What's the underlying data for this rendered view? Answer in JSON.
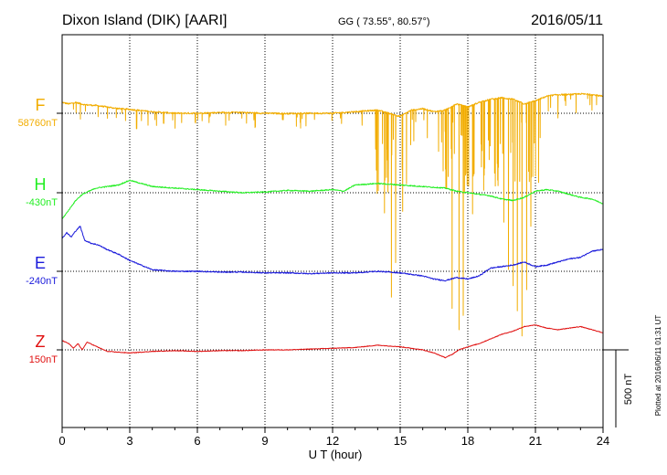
{
  "header": {
    "station": "Dixon Island (DIK)  [AARI]",
    "coords": "GG ( 73.55°,  80.57°)",
    "date": "2016/05/11"
  },
  "footer": {
    "plotted": "Plotted at 2016/06/11 01:31  UT"
  },
  "chart_data": {
    "type": "line",
    "xlabel": "U T (hour)",
    "xlim": [
      0,
      24
    ],
    "xticks": [
      0,
      3,
      6,
      9,
      12,
      15,
      18,
      21,
      24
    ],
    "grid": true,
    "scale_bar": {
      "label": "500 nT",
      "value": 500
    },
    "series": [
      {
        "name": "F",
        "baseline_label": "58760nT",
        "baseline_nT": 58760,
        "color": "#f2ad00",
        "x": [
          0,
          0.3,
          0.6,
          1.0,
          1.5,
          2.0,
          2.5,
          3.0,
          4.0,
          5.0,
          6.0,
          7.0,
          8.0,
          9.0,
          10.0,
          11.0,
          12.0,
          13.0,
          14.0,
          14.5,
          15.0,
          15.5,
          16.0,
          16.5,
          17.0,
          17.5,
          18.0,
          18.5,
          19.0,
          19.5,
          20.0,
          20.5,
          21.0,
          21.5,
          22.0,
          22.5,
          23.0,
          23.5,
          24.0
        ],
        "values": [
          58830,
          58820,
          58830,
          58815,
          58810,
          58800,
          58790,
          58785,
          58770,
          58760,
          58760,
          58765,
          58765,
          58760,
          58758,
          58760,
          58760,
          58770,
          58780,
          58760,
          58740,
          58780,
          58790,
          58770,
          58780,
          58820,
          58800,
          58830,
          58850,
          58860,
          58850,
          58820,
          58840,
          58870,
          58880,
          58880,
          58885,
          58880,
          58870
        ],
        "dips": [
          {
            "x": 0.8,
            "depth": 100
          },
          {
            "x": 1.6,
            "depth": 70
          },
          {
            "x": 2.4,
            "depth": 60
          },
          {
            "x": 3.3,
            "depth": 120
          },
          {
            "x": 3.8,
            "depth": 90
          },
          {
            "x": 4.5,
            "depth": 70
          },
          {
            "x": 5.3,
            "depth": 60
          },
          {
            "x": 6.2,
            "depth": 50
          },
          {
            "x": 7.4,
            "depth": 50
          },
          {
            "x": 8.5,
            "depth": 45
          },
          {
            "x": 9.8,
            "depth": 40
          },
          {
            "x": 11.2,
            "depth": 40
          },
          {
            "x": 12.4,
            "depth": 70
          },
          {
            "x": 13.3,
            "depth": 90
          },
          {
            "x": 13.9,
            "depth": 250
          },
          {
            "x": 14.3,
            "depth": 650
          },
          {
            "x": 14.6,
            "depth": 1180
          },
          {
            "x": 14.8,
            "depth": 950
          },
          {
            "x": 15.1,
            "depth": 620
          },
          {
            "x": 15.6,
            "depth": 200
          },
          {
            "x": 16.2,
            "depth": 180
          },
          {
            "x": 16.7,
            "depth": 260
          },
          {
            "x": 17.0,
            "depth": 380
          },
          {
            "x": 17.3,
            "depth": 1300
          },
          {
            "x": 17.6,
            "depth": 1450
          },
          {
            "x": 17.8,
            "depth": 1350
          },
          {
            "x": 18.2,
            "depth": 700
          },
          {
            "x": 18.6,
            "depth": 420
          },
          {
            "x": 19.0,
            "depth": 300
          },
          {
            "x": 19.3,
            "depth": 420
          },
          {
            "x": 19.6,
            "depth": 800
          },
          {
            "x": 19.8,
            "depth": 1100
          },
          {
            "x": 20.0,
            "depth": 1200
          },
          {
            "x": 20.2,
            "depth": 1350
          },
          {
            "x": 20.4,
            "depth": 1500
          },
          {
            "x": 20.6,
            "depth": 1200
          },
          {
            "x": 20.8,
            "depth": 800
          },
          {
            "x": 21.2,
            "depth": 250
          },
          {
            "x": 22.0,
            "depth": 150
          },
          {
            "x": 22.8,
            "depth": 120
          },
          {
            "x": 23.5,
            "depth": 100
          }
        ]
      },
      {
        "name": "H",
        "baseline_label": "-430nT",
        "baseline_nT": -430,
        "color": "#22ee22",
        "x": [
          0,
          0.3,
          0.6,
          0.9,
          1.2,
          1.5,
          2.0,
          2.5,
          3.0,
          3.5,
          4.0,
          5.0,
          6.0,
          7.0,
          8.0,
          9.0,
          10.0,
          11.0,
          12.0,
          12.5,
          13.0,
          14.0,
          15.0,
          16.0,
          17.0,
          17.5,
          18.0,
          18.5,
          19.0,
          19.5,
          20.0,
          20.5,
          21.0,
          21.5,
          22.0,
          22.5,
          23.0,
          23.5,
          24.0
        ],
        "values": [
          -600,
          -540,
          -480,
          -440,
          -420,
          -400,
          -390,
          -380,
          -350,
          -370,
          -390,
          -400,
          -410,
          -420,
          -430,
          -425,
          -415,
          -420,
          -410,
          -420,
          -380,
          -370,
          -380,
          -390,
          -400,
          -420,
          -430,
          -440,
          -450,
          -470,
          -480,
          -460,
          -420,
          -410,
          -420,
          -440,
          -460,
          -470,
          -500
        ]
      },
      {
        "name": "E",
        "baseline_label": "-240nT",
        "baseline_nT": -240,
        "color": "#1a1adb",
        "x": [
          0,
          0.2,
          0.4,
          0.6,
          0.8,
          1.0,
          1.3,
          1.6,
          2.0,
          2.5,
          3.0,
          3.5,
          4.0,
          5.0,
          6.0,
          7.0,
          8.0,
          9.0,
          10.0,
          11.0,
          12.0,
          13.0,
          14.0,
          15.0,
          16.0,
          16.5,
          17.0,
          17.5,
          18.0,
          18.5,
          19.0,
          19.5,
          20.0,
          20.5,
          21.0,
          21.5,
          22.0,
          22.5,
          23.0,
          23.5,
          24.0
        ],
        "values": [
          -30,
          10,
          -20,
          20,
          50,
          -40,
          -60,
          -70,
          -100,
          -130,
          -170,
          -200,
          -230,
          -240,
          -240,
          -245,
          -245,
          -250,
          -250,
          -255,
          -250,
          -250,
          -240,
          -250,
          -270,
          -290,
          -300,
          -280,
          -290,
          -270,
          -220,
          -210,
          -200,
          -180,
          -210,
          -200,
          -180,
          -160,
          -150,
          -110,
          -100
        ]
      },
      {
        "name": "Z",
        "baseline_label": "150nT",
        "baseline_nT": 150,
        "color": "#e01010",
        "x": [
          0,
          0.3,
          0.5,
          0.7,
          0.9,
          1.1,
          1.4,
          2.0,
          3.0,
          4.0,
          5.0,
          6.0,
          7.0,
          8.0,
          9.0,
          10.0,
          11.0,
          12.0,
          13.0,
          14.0,
          15.0,
          16.0,
          16.5,
          17.0,
          17.3,
          17.6,
          18.0,
          18.5,
          19.0,
          19.5,
          20.0,
          20.5,
          21.0,
          21.5,
          22.0,
          22.5,
          23.0,
          23.5,
          24.0
        ],
        "values": [
          210,
          190,
          160,
          190,
          150,
          200,
          180,
          140,
          130,
          140,
          145,
          140,
          145,
          145,
          150,
          150,
          155,
          160,
          165,
          180,
          170,
          150,
          130,
          100,
          120,
          150,
          170,
          190,
          220,
          250,
          270,
          300,
          310,
          290,
          280,
          290,
          300,
          280,
          260
        ]
      }
    ]
  }
}
